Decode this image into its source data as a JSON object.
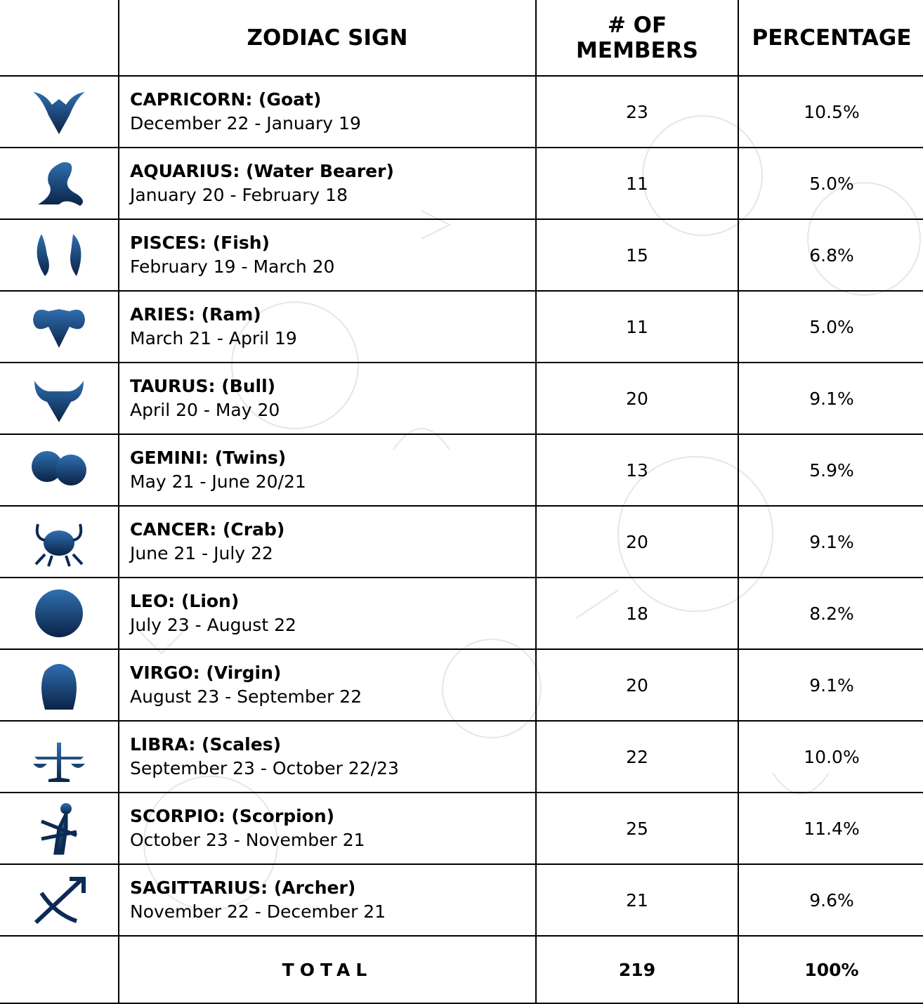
{
  "table": {
    "header": [
      "ZODIAC SIGN",
      "# OF MEMBERS",
      "PERCENTAGE"
    ],
    "rows": [
      {
        "sign": "CAPRICORN: (Goat)",
        "dates": "December 22 - January 19",
        "members": 23,
        "percentage": "10.5%"
      },
      {
        "sign": "AQUARIUS: (Water Bearer)",
        "dates": "January 20 - February 18",
        "members": 11,
        "percentage": "5.0%"
      },
      {
        "sign": "PISCES: (Fish)",
        "dates": "February 19 - March 20",
        "members": 15,
        "percentage": "6.8%"
      },
      {
        "sign": "ARIES: (Ram)",
        "dates": "March 21 - April 19",
        "members": 11,
        "percentage": "5.0%"
      },
      {
        "sign": "TAURUS: (Bull)",
        "dates": "April 20 - May 20",
        "members": 20,
        "percentage": "9.1%"
      },
      {
        "sign": "GEMINI: (Twins)",
        "dates": "May 21 - June 20/21",
        "members": 13,
        "percentage": "5.9%"
      },
      {
        "sign": "CANCER: (Crab)",
        "dates": "June 21 - July 22",
        "members": 20,
        "percentage": "9.1%"
      },
      {
        "sign": "LEO: (Lion)",
        "dates": "July 23 - August 22",
        "members": 18,
        "percentage": "8.2%"
      },
      {
        "sign": "VIRGO: (Virgin)",
        "dates": "August 23 - September 22",
        "members": 20,
        "percentage": "9.1%"
      },
      {
        "sign": "LIBRA: (Scales)",
        "dates": "September 23 - October 22/23",
        "members": 22,
        "percentage": "10.0%"
      },
      {
        "sign": "SCORPIO: (Scorpion)",
        "dates": "October 23 - November 21",
        "members": 25,
        "percentage": "11.4%"
      },
      {
        "sign": "SAGITTARIUS: (Archer)",
        "dates": "November 22 - December 21",
        "members": 21,
        "percentage": "9.6%"
      }
    ],
    "total": {
      "label": "TOTAL",
      "members": 219,
      "percentage": "100%"
    }
  }
}
